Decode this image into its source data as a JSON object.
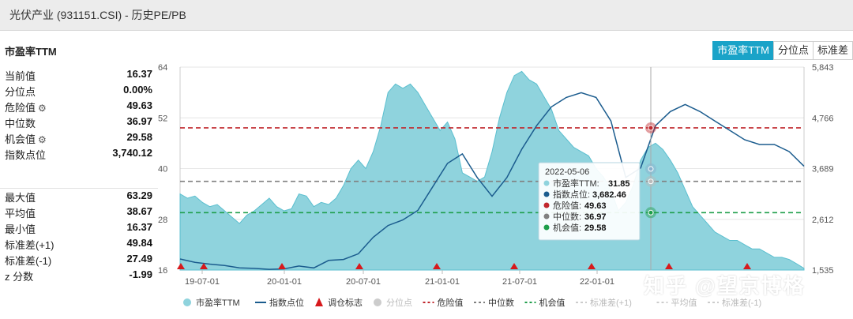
{
  "window": {
    "title": "光伏产业 (931151.CSI) - 历史PE/PB"
  },
  "panel": {
    "title": "市盈率TTM"
  },
  "tabs": [
    "市盈率TTM",
    "分位点",
    "标准差"
  ],
  "stats_top": [
    {
      "label": "当前值",
      "value": "16.37",
      "gear": false
    },
    {
      "label": "分位点",
      "value": "0.00%",
      "gear": false
    },
    {
      "label": "危险值",
      "value": "49.63",
      "gear": true
    },
    {
      "label": "中位数",
      "value": "36.97",
      "gear": false
    },
    {
      "label": "机会值",
      "value": "29.58",
      "gear": true
    },
    {
      "label": "指数点位",
      "value": "3,740.12",
      "gear": false
    }
  ],
  "stats_bottom": [
    {
      "label": "最大值",
      "value": "63.29"
    },
    {
      "label": "平均值",
      "value": "38.67"
    },
    {
      "label": "最小值",
      "value": "16.37"
    },
    {
      "label": "标准差(+1)",
      "value": "49.84"
    },
    {
      "label": "标准差(-1)",
      "value": "27.49"
    },
    {
      "label": "z 分数",
      "value": "-1.99"
    }
  ],
  "watermark": "知乎 @望京博格",
  "colors": {
    "pe_fill": "#8fd3dd",
    "pe_stroke": "#5bbfcf",
    "index_line": "#1b5c8e",
    "danger": "#c0272d",
    "median": "#808080",
    "opportunity": "#1e9e4a",
    "marker": "#d7191c",
    "tab_active": "#1aa3c8"
  },
  "chart_data": {
    "type": "area",
    "x_range": [
      "2019-04",
      "2022-12"
    ],
    "x_ticks": [
      "19-07-01",
      "20-01-01",
      "20-07-01",
      "21-01-01",
      "21-07-01",
      "22-01-01"
    ],
    "y_left": {
      "ticks": [
        "16",
        "28",
        "40",
        "52",
        "64"
      ],
      "range": [
        16,
        64
      ]
    },
    "y_right": {
      "ticks": [
        "1,535",
        "2,612",
        "3,689",
        "4,766",
        "5,843"
      ],
      "range": [
        1535,
        5843
      ]
    },
    "lines": {
      "danger": 49.63,
      "median": 36.97,
      "opportunity": 29.58
    },
    "series": [
      {
        "name": "市盈率TTM",
        "kind": "area",
        "points": [
          [
            0,
            34
          ],
          [
            0.5,
            33
          ],
          [
            1,
            33.5
          ],
          [
            1.5,
            32
          ],
          [
            2,
            31
          ],
          [
            2.5,
            31.5
          ],
          [
            3,
            30
          ],
          [
            3.5,
            28.5
          ],
          [
            4,
            27
          ],
          [
            4.5,
            29
          ],
          [
            5,
            30
          ],
          [
            5.5,
            31.5
          ],
          [
            6,
            33
          ],
          [
            6.5,
            31
          ],
          [
            7,
            30
          ],
          [
            7.5,
            30.5
          ],
          [
            8,
            34
          ],
          [
            8.5,
            33.5
          ],
          [
            9,
            31
          ],
          [
            9.5,
            32
          ],
          [
            10,
            31.5
          ],
          [
            10.5,
            33
          ],
          [
            11,
            36
          ],
          [
            11.5,
            40
          ],
          [
            12,
            42
          ],
          [
            12.5,
            40
          ],
          [
            13,
            44
          ],
          [
            13.5,
            50
          ],
          [
            14,
            58
          ],
          [
            14.5,
            60
          ],
          [
            15,
            59
          ],
          [
            15.5,
            60
          ],
          [
            16,
            58
          ],
          [
            16.5,
            55
          ],
          [
            17,
            52
          ],
          [
            17.5,
            49
          ],
          [
            18,
            51
          ],
          [
            18.5,
            47
          ],
          [
            19,
            39
          ],
          [
            19.5,
            38
          ],
          [
            20,
            37
          ],
          [
            20.5,
            38
          ],
          [
            21,
            44
          ],
          [
            21.5,
            52
          ],
          [
            22,
            58
          ],
          [
            22.5,
            62
          ],
          [
            23,
            63
          ],
          [
            23.5,
            61
          ],
          [
            24,
            60
          ],
          [
            24.5,
            57
          ],
          [
            25,
            54
          ],
          [
            25.5,
            49
          ],
          [
            26,
            47
          ],
          [
            26.5,
            45
          ],
          [
            27,
            44
          ],
          [
            27.5,
            43
          ],
          [
            28,
            40
          ],
          [
            28.5,
            38
          ],
          [
            29,
            35
          ],
          [
            29.5,
            30
          ],
          [
            30,
            32
          ],
          [
            30.5,
            36
          ],
          [
            31,
            42
          ],
          [
            31.5,
            45
          ],
          [
            32,
            46
          ],
          [
            32.5,
            44.5
          ],
          [
            33,
            42
          ],
          [
            33.5,
            39
          ],
          [
            34,
            35
          ],
          [
            34.5,
            31
          ],
          [
            35,
            29
          ],
          [
            35.5,
            27
          ],
          [
            36,
            25
          ],
          [
            36.5,
            24
          ],
          [
            37,
            23
          ],
          [
            37.5,
            23
          ],
          [
            38,
            22
          ],
          [
            38.5,
            21
          ],
          [
            39,
            21
          ],
          [
            39.5,
            20
          ],
          [
            40,
            19
          ],
          [
            40.5,
            19
          ],
          [
            41,
            18.5
          ],
          [
            41.5,
            17.5
          ],
          [
            42,
            16.4
          ]
        ]
      },
      {
        "name": "指数点位",
        "kind": "line",
        "points": [
          [
            0,
            1770
          ],
          [
            1,
            1700
          ],
          [
            2,
            1660
          ],
          [
            3,
            1630
          ],
          [
            4,
            1580
          ],
          [
            5,
            1570
          ],
          [
            6,
            1550
          ],
          [
            7,
            1560
          ],
          [
            8,
            1620
          ],
          [
            9,
            1580
          ],
          [
            10,
            1740
          ],
          [
            11,
            1760
          ],
          [
            12,
            1880
          ],
          [
            13,
            2230
          ],
          [
            14,
            2480
          ],
          [
            15,
            2600
          ],
          [
            16,
            2800
          ],
          [
            17,
            3300
          ],
          [
            18,
            3800
          ],
          [
            19,
            4000
          ],
          [
            20,
            3500
          ],
          [
            21,
            3100
          ],
          [
            22,
            3500
          ],
          [
            23,
            4100
          ],
          [
            24,
            4600
          ],
          [
            25,
            5000
          ],
          [
            26,
            5200
          ],
          [
            27,
            5300
          ],
          [
            28,
            5200
          ],
          [
            29,
            4700
          ],
          [
            30,
            3500
          ],
          [
            31,
            3700
          ],
          [
            32,
            4600
          ],
          [
            33,
            4900
          ],
          [
            34,
            5050
          ],
          [
            35,
            4900
          ],
          [
            36,
            4700
          ],
          [
            37,
            4500
          ],
          [
            38,
            4300
          ],
          [
            39,
            4200
          ],
          [
            40,
            4200
          ],
          [
            41,
            4050
          ],
          [
            42,
            3740
          ]
        ]
      }
    ],
    "markers_x": [
      0.2,
      1.3,
      5.8,
      10.5,
      15.2,
      19.8,
      24.2,
      28.9,
      33.4,
      38.0
    ],
    "tooltip": {
      "date": "2022-05-06",
      "rows": [
        {
          "label": "市盈率TTM:",
          "value": "31.85",
          "color": "#8fd3dd"
        },
        {
          "label": "指数点位:",
          "value": "3,682.46",
          "color": "#1b5c8e"
        },
        {
          "label": "危险值:",
          "value": "49.63",
          "color": "#c0272d"
        },
        {
          "label": "中位数:",
          "value": "36.97",
          "color": "#808080"
        },
        {
          "label": "机会值:",
          "value": "29.58",
          "color": "#1e9e4a"
        }
      ]
    },
    "legend": [
      {
        "label": "市盈率TTM",
        "shape": "circle",
        "color": "#8fd3dd",
        "dim": false
      },
      {
        "label": "指数点位",
        "shape": "line",
        "color": "#1b5c8e",
        "dim": false
      },
      {
        "label": "调仓标志",
        "shape": "triangle",
        "color": "#d7191c",
        "dim": false
      },
      {
        "label": "分位点",
        "shape": "circle",
        "color": "#cccccc",
        "dim": true
      },
      {
        "label": "危险值",
        "shape": "dash",
        "color": "#c0272d",
        "dim": false
      },
      {
        "label": "中位数",
        "shape": "dash",
        "color": "#808080",
        "dim": false
      },
      {
        "label": "机会值",
        "shape": "dash",
        "color": "#1e9e4a",
        "dim": false
      },
      {
        "label": "标准差(+1)",
        "shape": "dash",
        "color": "#cccccc",
        "dim": true
      },
      {
        "label": "平均值",
        "shape": "dash",
        "color": "#cccccc",
        "dim": true
      },
      {
        "label": "标准差(-1)",
        "shape": "dash",
        "color": "#cccccc",
        "dim": true
      }
    ]
  }
}
